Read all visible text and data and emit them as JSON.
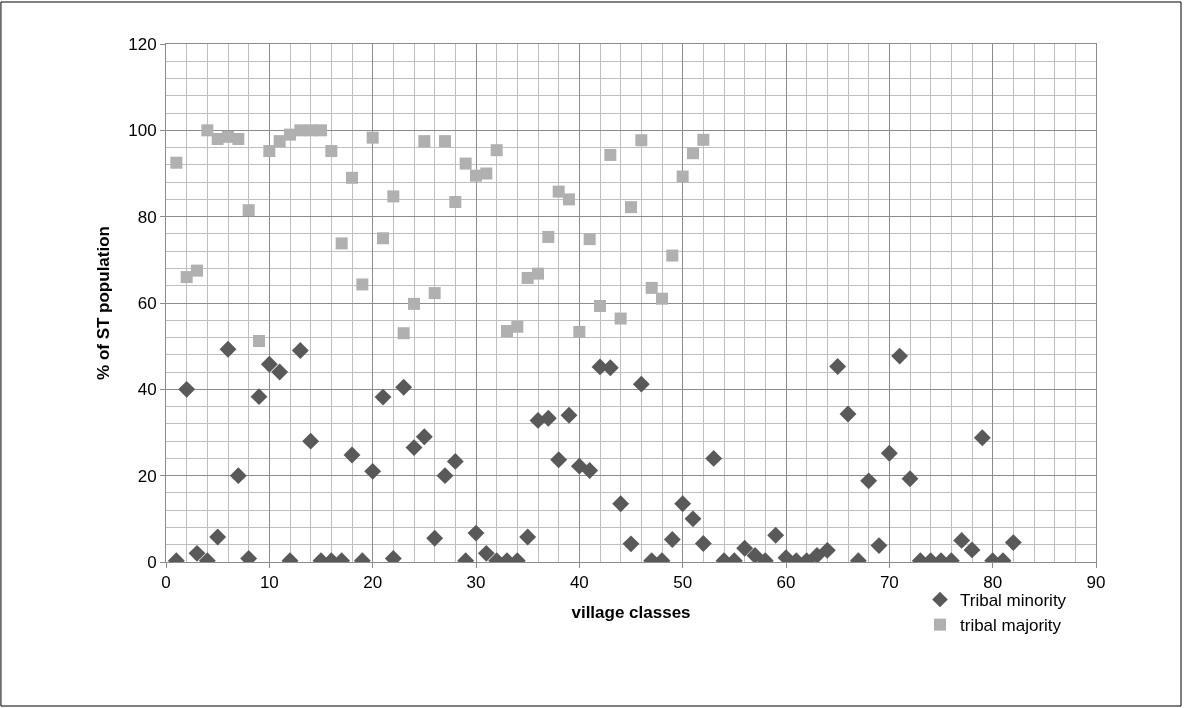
{
  "chart_data": {
    "type": "scatter",
    "xlabel": "village classes",
    "ylabel": "% of ST population",
    "xlim": [
      0,
      90
    ],
    "xticks": [
      0,
      10,
      20,
      30,
      40,
      50,
      60,
      70,
      80,
      90
    ],
    "ylim": [
      0,
      120
    ],
    "yticks": [
      0,
      20,
      40,
      60,
      80,
      100,
      120
    ],
    "grid": true,
    "legend": "bottom right",
    "series": [
      {
        "name": "Tribal minority",
        "color": "#595959",
        "marker": "diamond",
        "x": [
          1,
          2,
          3,
          4,
          5,
          6,
          7,
          8,
          9,
          10,
          11,
          12,
          13,
          14,
          15,
          16,
          17,
          18,
          19,
          20,
          21,
          22,
          23,
          24,
          25,
          26,
          27,
          28,
          29,
          30,
          31,
          32,
          33,
          34,
          35,
          36,
          37,
          38,
          39,
          40,
          41,
          42,
          43,
          44,
          45,
          46,
          47,
          48,
          49,
          50,
          51,
          52,
          53,
          54,
          55,
          56,
          57,
          58,
          59,
          60,
          61,
          62,
          63,
          64,
          65,
          66,
          67,
          68,
          69,
          70,
          71,
          72,
          73,
          74,
          75,
          76,
          77,
          78,
          79,
          80,
          81,
          82
        ],
        "values": [
          0.3,
          40,
          2,
          0.3,
          5.8,
          49.3,
          20,
          0.8,
          38.3,
          45.8,
          44,
          0.3,
          49,
          28,
          0.3,
          0.3,
          0.3,
          24.8,
          0.3,
          21,
          38.2,
          0.8,
          40.5,
          26.5,
          29,
          5.5,
          20,
          23.3,
          0.3,
          6.7,
          2,
          0.3,
          0.3,
          0.3,
          5.8,
          32.8,
          33.3,
          23.7,
          34,
          22.2,
          21.2,
          45.2,
          45,
          13.5,
          4.2,
          41.2,
          0.3,
          0.3,
          5.2,
          13.5,
          10,
          4.3,
          24,
          0.3,
          0.3,
          3.2,
          1.5,
          0.3,
          6.2,
          1,
          0.3,
          0.3,
          1.5,
          2.7,
          45.3,
          34.3,
          0.3,
          18.8,
          3.8,
          25.2,
          47.7,
          19.3,
          0.3,
          0.3,
          0.3,
          0.3,
          5,
          2.8,
          28.8,
          0.3,
          0.3,
          4.5
        ]
      },
      {
        "name": "tribal majority",
        "color": "#b0b0b0",
        "marker": "square",
        "x": [
          1,
          2,
          3,
          4,
          5,
          6,
          7,
          8,
          9,
          10,
          11,
          12,
          13,
          14,
          15,
          16,
          17,
          18,
          19,
          20,
          21,
          22,
          23,
          24,
          25,
          26,
          27,
          28,
          29,
          30,
          31,
          32,
          33,
          34,
          35,
          36,
          37,
          38,
          39,
          40,
          41,
          42,
          43,
          44,
          45,
          46,
          47,
          48,
          49,
          50,
          51,
          52
        ],
        "values": [
          92.5,
          66,
          67.5,
          100,
          98,
          98.5,
          98,
          81.5,
          51.2,
          95.2,
          97.5,
          99,
          100,
          100,
          100,
          95.2,
          73.8,
          89,
          64.3,
          98.3,
          75,
          84.7,
          53,
          59.8,
          97.5,
          62.3,
          97.5,
          83.4,
          92.3,
          89.5,
          90,
          95.4,
          53.5,
          54.5,
          65.8,
          66.8,
          75.3,
          85.8,
          84,
          53.3,
          74.8,
          59.3,
          94.3,
          56.4,
          82.2,
          97.7,
          63.5,
          61,
          71,
          89.3,
          94.7,
          97.8
        ]
      }
    ]
  }
}
